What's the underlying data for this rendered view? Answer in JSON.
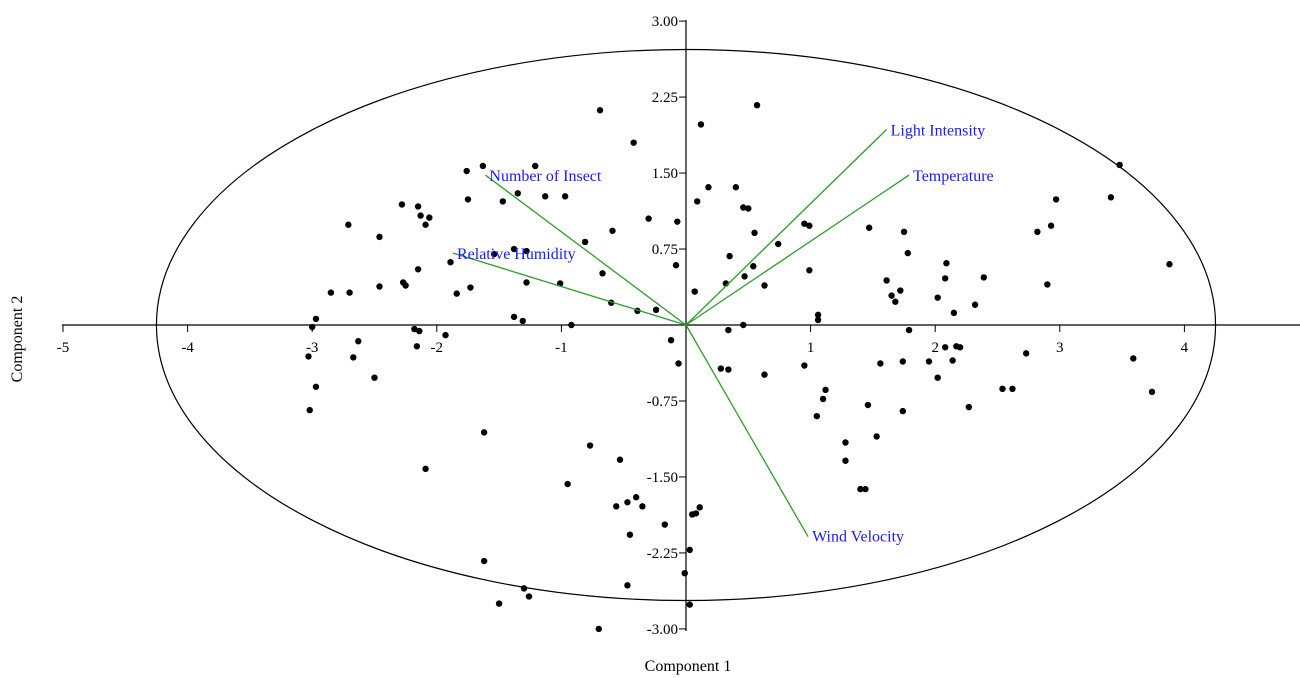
{
  "chart_data": {
    "type": "scatter",
    "title": "",
    "xlabel": "Component 1",
    "ylabel": "Component 2",
    "xlim": [
      -5,
      4.9
    ],
    "ylim": [
      -3.05,
      3.05
    ],
    "x_ticks": [
      -5,
      -4,
      -3,
      -2,
      -1,
      1,
      2,
      3,
      4
    ],
    "y_ticks": [
      -3.0,
      -2.25,
      -1.5,
      -0.75,
      0.75,
      1.5,
      2.25,
      3.0
    ],
    "y_tick_labels": [
      "-3.00",
      "-2.25",
      "-1.50",
      "-0.75",
      "0.75",
      "1.50",
      "2.25",
      "3.00"
    ],
    "grid": false,
    "ellipse": {
      "center": [
        0,
        0
      ],
      "rx": 4.25,
      "ry": 2.72
    },
    "colors": {
      "points": "#000000",
      "vectors": "#2e9b2e",
      "vector_labels": "#1a1aff",
      "axes": "#000000"
    },
    "points": [
      [
        -0.69,
        2.12
      ],
      [
        -0.42,
        1.8
      ],
      [
        0.12,
        1.98
      ],
      [
        0.57,
        2.17
      ],
      [
        -1.63,
        1.57
      ],
      [
        -1.76,
        1.52
      ],
      [
        -1.21,
        1.57
      ],
      [
        -0.97,
        1.27
      ],
      [
        -1.13,
        1.27
      ],
      [
        -0.59,
        0.93
      ],
      [
        -0.3,
        1.05
      ],
      [
        -0.67,
        0.51
      ],
      [
        -1.35,
        1.3
      ],
      [
        -1.47,
        1.22
      ],
      [
        -1.75,
        1.24
      ],
      [
        -2.28,
        1.19
      ],
      [
        -2.15,
        1.17
      ],
      [
        -2.13,
        1.08
      ],
      [
        -2.06,
        1.06
      ],
      [
        -2.09,
        0.99
      ],
      [
        -2.71,
        0.99
      ],
      [
        -2.46,
        0.87
      ],
      [
        -1.38,
        0.75
      ],
      [
        -1.54,
        0.7
      ],
      [
        -1.28,
        0.73
      ],
      [
        -0.81,
        0.82
      ],
      [
        -1.89,
        0.62
      ],
      [
        -2.15,
        0.55
      ],
      [
        -1.28,
        0.42
      ],
      [
        -1.01,
        0.41
      ],
      [
        -2.27,
        0.42
      ],
      [
        -2.25,
        0.39
      ],
      [
        -1.84,
        0.31
      ],
      [
        -1.73,
        0.37
      ],
      [
        -2.85,
        0.32
      ],
      [
        -2.7,
        0.32
      ],
      [
        -2.46,
        0.38
      ],
      [
        -0.6,
        0.22
      ],
      [
        -0.24,
        0.15
      ],
      [
        -0.39,
        0.14
      ],
      [
        -1.38,
        0.08
      ],
      [
        -1.31,
        0.04
      ],
      [
        -0.92,
        0.0
      ],
      [
        -2.97,
        0.06
      ],
      [
        -3.0,
        -0.02
      ],
      [
        -2.18,
        -0.04
      ],
      [
        -2.14,
        -0.06
      ],
      [
        -1.93,
        -0.1
      ],
      [
        -2.63,
        -0.16
      ],
      [
        -2.16,
        -0.21
      ],
      [
        -3.03,
        -0.31
      ],
      [
        -2.67,
        -0.32
      ],
      [
        -2.5,
        -0.52
      ],
      [
        -2.97,
        -0.61
      ],
      [
        -3.02,
        -0.84
      ],
      [
        -0.07,
        1.02
      ],
      [
        -0.08,
        0.59
      ],
      [
        0.09,
        1.22
      ],
      [
        0.18,
        1.36
      ],
      [
        0.4,
        1.36
      ],
      [
        0.46,
        1.16
      ],
      [
        0.5,
        1.15
      ],
      [
        0.55,
        0.91
      ],
      [
        0.35,
        0.68
      ],
      [
        0.74,
        0.8
      ],
      [
        0.54,
        0.58
      ],
      [
        0.47,
        0.48
      ],
      [
        0.32,
        0.41
      ],
      [
        0.63,
        0.39
      ],
      [
        0.07,
        0.33
      ],
      [
        0.95,
        1.0
      ],
      [
        0.99,
        0.98
      ],
      [
        0.99,
        0.54
      ],
      [
        1.06,
        0.1
      ],
      [
        1.06,
        0.05
      ],
      [
        0.46,
        0.0
      ],
      [
        0.34,
        -0.05
      ],
      [
        -0.12,
        -0.15
      ],
      [
        -0.06,
        -0.38
      ],
      [
        0.28,
        -0.43
      ],
      [
        0.34,
        -0.44
      ],
      [
        0.63,
        -0.49
      ],
      [
        0.95,
        -0.4
      ],
      [
        1.05,
        -0.9
      ],
      [
        1.1,
        -0.73
      ],
      [
        1.12,
        -0.64
      ],
      [
        1.47,
        0.96
      ],
      [
        1.75,
        0.92
      ],
      [
        1.78,
        0.71
      ],
      [
        1.61,
        0.44
      ],
      [
        1.65,
        0.29
      ],
      [
        1.68,
        0.23
      ],
      [
        1.72,
        0.34
      ],
      [
        1.79,
        -0.05
      ],
      [
        1.56,
        -0.38
      ],
      [
        1.74,
        -0.36
      ],
      [
        1.46,
        -0.79
      ],
      [
        1.74,
        -0.85
      ],
      [
        1.28,
        -1.16
      ],
      [
        1.28,
        -1.34
      ],
      [
        1.4,
        -1.62
      ],
      [
        1.44,
        -1.62
      ],
      [
        1.53,
        -1.1
      ],
      [
        2.09,
        0.61
      ],
      [
        2.08,
        0.46
      ],
      [
        2.02,
        0.27
      ],
      [
        2.15,
        0.12
      ],
      [
        2.17,
        -0.21
      ],
      [
        2.2,
        -0.22
      ],
      [
        2.08,
        -0.22
      ],
      [
        1.95,
        -0.36
      ],
      [
        2.02,
        -0.52
      ],
      [
        2.14,
        -0.35
      ],
      [
        2.32,
        0.2
      ],
      [
        2.39,
        0.47
      ],
      [
        2.27,
        -0.81
      ],
      [
        2.54,
        -0.63
      ],
      [
        2.62,
        -0.63
      ],
      [
        2.73,
        -0.28
      ],
      [
        2.82,
        0.92
      ],
      [
        2.9,
        0.4
      ],
      [
        2.93,
        0.98
      ],
      [
        2.97,
        1.24
      ],
      [
        3.41,
        1.26
      ],
      [
        3.48,
        1.58
      ],
      [
        3.59,
        -0.33
      ],
      [
        3.74,
        -0.66
      ],
      [
        3.88,
        0.6
      ],
      [
        -1.62,
        -1.06
      ],
      [
        -0.77,
        -1.19
      ],
      [
        -0.53,
        -1.33
      ],
      [
        -0.95,
        -1.57
      ],
      [
        -0.4,
        -1.7
      ],
      [
        -0.56,
        -1.79
      ],
      [
        -0.47,
        -1.75
      ],
      [
        -0.35,
        -1.79
      ],
      [
        -0.17,
        -1.97
      ],
      [
        0.11,
        -1.8
      ],
      [
        0.08,
        -1.86
      ],
      [
        0.05,
        -1.87
      ],
      [
        -0.45,
        -2.07
      ],
      [
        -1.62,
        -2.33
      ],
      [
        -1.3,
        -2.6
      ],
      [
        -1.26,
        -2.68
      ],
      [
        -1.5,
        -2.75
      ],
      [
        -0.47,
        -2.57
      ],
      [
        0.03,
        -2.22
      ],
      [
        -0.01,
        -2.45
      ],
      [
        0.03,
        -2.76
      ],
      [
        -0.7,
        -3.0
      ],
      [
        -2.09,
        -1.42
      ]
    ],
    "vectors": [
      {
        "label": "Light Intensity",
        "x": 1.61,
        "y": 1.93
      },
      {
        "label": "Temperature",
        "x": 1.79,
        "y": 1.48
      },
      {
        "label": "Number of Insect",
        "x": -1.61,
        "y": 1.48
      },
      {
        "label": "Relative Humidity",
        "x": -1.87,
        "y": 0.71
      },
      {
        "label": "Wind Velocity",
        "x": 0.98,
        "y": -2.09
      }
    ]
  }
}
